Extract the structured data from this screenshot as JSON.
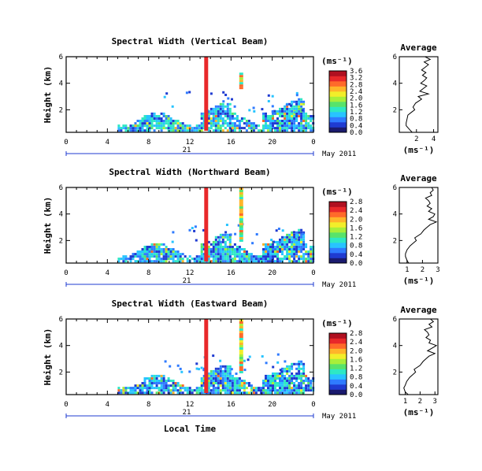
{
  "figure": {
    "xlabel": "Local Time",
    "date_label": "May 2011",
    "day_label": "21",
    "ylabel": "Height (km)",
    "unit_label": "(ms⁻¹)",
    "profile_title": "Average",
    "profile_xlabel": "(ms⁻¹)"
  },
  "colorscale": [
    "#1a1a6e",
    "#1f3bd1",
    "#2f7bff",
    "#28c4ff",
    "#2ee8c4",
    "#58e36a",
    "#a8ef3a",
    "#f2ee2a",
    "#ffb52a",
    "#ff6a2a",
    "#e8282a",
    "#b01020"
  ],
  "chart_data": [
    {
      "type": "heatmap",
      "title": "Spectral Width (Vertical Beam)",
      "xlabel": "Local Time",
      "ylabel": "Height (km)",
      "x_ticks": [
        "0",
        "4",
        "8",
        "12",
        "16",
        "20",
        "0"
      ],
      "xlim": [
        0,
        24
      ],
      "y_ticks": [
        "2",
        "4",
        "6"
      ],
      "ylim": [
        0.3,
        6
      ],
      "colorbar_ticks": [
        "0.0",
        "0.4",
        "0.8",
        "1.2",
        "1.6",
        "2.0",
        "2.4",
        "2.8",
        "3.2",
        "3.6"
      ],
      "colorbar_range": [
        0,
        3.8
      ],
      "profile": {
        "title": "Average",
        "xlabel": "(ms⁻¹)",
        "x_ticks": [
          "2",
          "4"
        ],
        "xlim": [
          0,
          4.5
        ],
        "heights": [
          0.3,
          0.5,
          0.8,
          1.0,
          1.3,
          1.6,
          1.8,
          2.0,
          2.2,
          2.5,
          2.8,
          3.0,
          3.2,
          3.4,
          3.6,
          3.8,
          4.0,
          4.2,
          4.4,
          4.6,
          4.8,
          5.0,
          5.2,
          5.4,
          5.6,
          5.8,
          6.0
        ],
        "values": [
          1.5,
          1.2,
          0.8,
          0.8,
          0.9,
          1.0,
          1.4,
          1.8,
          1.6,
          1.9,
          2.6,
          2.2,
          3.4,
          2.4,
          2.8,
          3.2,
          2.5,
          2.9,
          3.2,
          2.7,
          3.1,
          2.6,
          3.0,
          3.4,
          2.9,
          3.6,
          3.0
        ]
      }
    },
    {
      "type": "heatmap",
      "title": "Spectral Width (Northward Beam)",
      "xlabel": "Local Time",
      "ylabel": "Height (km)",
      "x_ticks": [
        "0",
        "4",
        "8",
        "12",
        "16",
        "20",
        "0"
      ],
      "xlim": [
        0,
        24
      ],
      "y_ticks": [
        "2",
        "4",
        "6"
      ],
      "ylim": [
        0.3,
        6
      ],
      "colorbar_ticks": [
        "0.0",
        "0.4",
        "0.8",
        "1.2",
        "1.6",
        "2.0",
        "2.4",
        "2.8"
      ],
      "colorbar_range": [
        0,
        3.0
      ],
      "profile": {
        "title": "Average",
        "xlabel": "(ms⁻¹)",
        "x_ticks": [
          "1",
          "2",
          "3"
        ],
        "xlim": [
          0.5,
          3.0
        ],
        "heights": [
          0.3,
          0.5,
          0.8,
          1.0,
          1.3,
          1.6,
          1.8,
          2.0,
          2.2,
          2.5,
          2.8,
          3.0,
          3.2,
          3.4,
          3.6,
          3.8,
          4.0,
          4.2,
          4.4,
          4.6,
          4.8,
          5.0,
          5.2,
          5.4,
          5.6,
          5.8,
          6.0
        ],
        "values": [
          1.1,
          1.0,
          0.9,
          0.9,
          1.0,
          1.2,
          1.4,
          1.6,
          1.5,
          1.9,
          2.1,
          2.3,
          2.5,
          2.9,
          2.4,
          2.7,
          2.8,
          2.4,
          2.6,
          2.3,
          2.5,
          2.4,
          2.2,
          2.6,
          2.5,
          2.7,
          2.6
        ]
      }
    },
    {
      "type": "heatmap",
      "title": "Spectral Width (Eastward Beam)",
      "xlabel": "Local Time",
      "ylabel": "Height (km)",
      "x_ticks": [
        "0",
        "4",
        "8",
        "12",
        "16",
        "20",
        "0"
      ],
      "xlim": [
        0,
        24
      ],
      "y_ticks": [
        "2",
        "4",
        "6"
      ],
      "ylim": [
        0.3,
        6
      ],
      "colorbar_ticks": [
        "0.0",
        "0.4",
        "0.8",
        "1.2",
        "1.6",
        "2.0",
        "2.4",
        "2.8"
      ],
      "colorbar_range": [
        0,
        3.0
      ],
      "profile": {
        "title": "Average",
        "xlabel": "(ms⁻¹)",
        "x_ticks": [
          "1",
          "2",
          "3"
        ],
        "xlim": [
          0.6,
          3.2
        ],
        "heights": [
          0.3,
          0.5,
          0.8,
          1.0,
          1.3,
          1.6,
          1.8,
          2.0,
          2.2,
          2.5,
          2.8,
          3.0,
          3.2,
          3.4,
          3.6,
          3.8,
          4.0,
          4.2,
          4.4,
          4.6,
          4.8,
          5.0,
          5.2,
          5.4,
          5.6,
          5.8,
          6.0
        ],
        "values": [
          1.2,
          1.0,
          0.9,
          1.0,
          1.1,
          1.3,
          1.5,
          1.7,
          1.6,
          2.0,
          2.2,
          2.4,
          2.6,
          3.0,
          2.5,
          2.8,
          3.1,
          2.6,
          2.7,
          2.4,
          2.6,
          2.5,
          2.3,
          2.8,
          2.6,
          2.9,
          2.7
        ]
      }
    }
  ]
}
